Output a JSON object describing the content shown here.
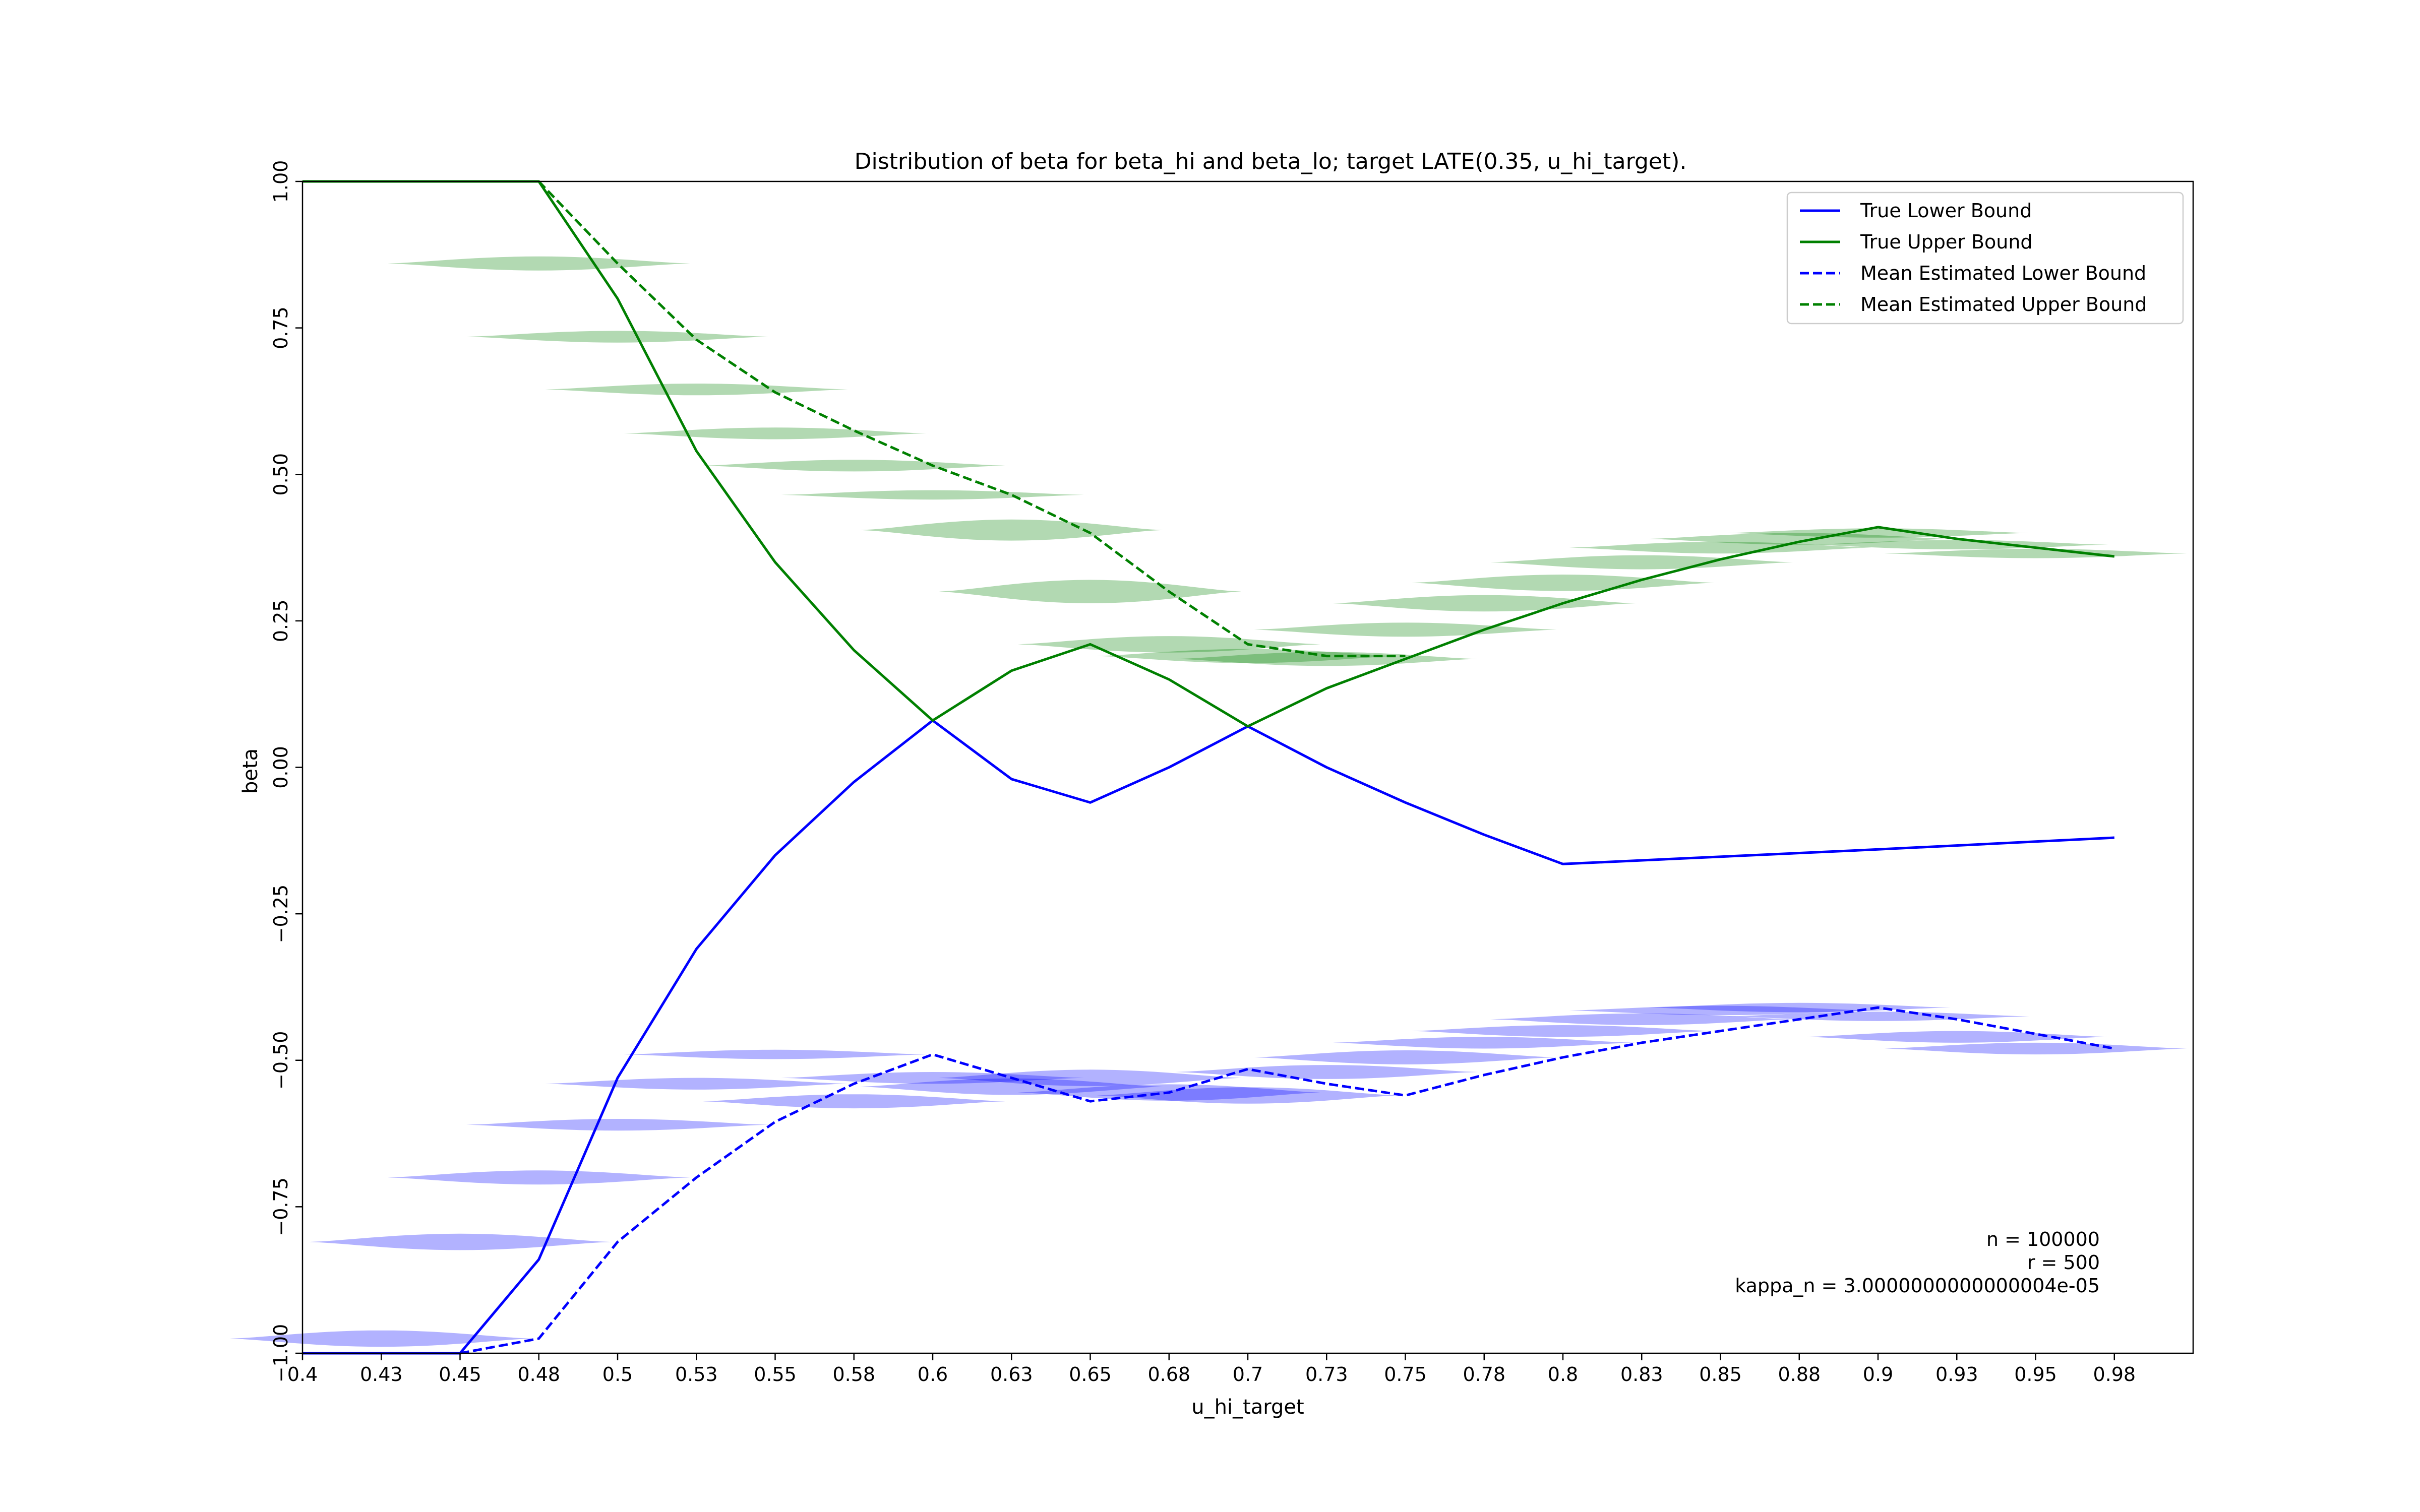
{
  "chart_data": {
    "type": "line",
    "title": "Distribution of beta for beta_hi and beta_lo; target LATE(0.35, u_hi_target).",
    "xlabel": "u_hi_target",
    "ylabel": "beta",
    "xlim": [
      0.4,
      1.0
    ],
    "ylim": [
      -1.0,
      1.0
    ],
    "x_tick_labels": [
      "0.4",
      "0.43",
      "0.45",
      "0.48",
      "0.5",
      "0.53",
      "0.55",
      "0.58",
      "0.6",
      "0.63",
      "0.65",
      "0.68",
      "0.7",
      "0.73",
      "0.75",
      "0.78",
      "0.8",
      "0.83",
      "0.85",
      "0.88",
      "0.9",
      "0.93",
      "0.95",
      "0.98"
    ],
    "y_ticks": [
      -1.0,
      -0.75,
      -0.5,
      -0.25,
      0.0,
      0.25,
      0.5,
      0.75,
      1.0
    ],
    "y_tick_labels": [
      "−1.00",
      "−0.75",
      "−0.50",
      "−0.25",
      "0.00",
      "0.25",
      "0.50",
      "0.75",
      "1.00"
    ],
    "legend_position": "top-right",
    "series": [
      {
        "name": "True Lower Bound",
        "color": "#0000ff",
        "style": "solid",
        "points": [
          [
            0.4,
            -1.0
          ],
          [
            0.425,
            -1.0
          ],
          [
            0.45,
            -1.0
          ],
          [
            0.475,
            -0.84
          ],
          [
            0.5,
            -0.53
          ],
          [
            0.525,
            -0.31
          ],
          [
            0.55,
            -0.15
          ],
          [
            0.575,
            -0.025
          ],
          [
            0.6,
            0.08
          ],
          [
            0.625,
            -0.02
          ],
          [
            0.65,
            -0.06
          ],
          [
            0.675,
            0.0
          ],
          [
            0.7,
            0.07
          ],
          [
            0.725,
            0.0
          ],
          [
            0.75,
            -0.06
          ],
          [
            0.775,
            -0.115
          ],
          [
            0.8,
            -0.165
          ],
          [
            0.9,
            -0.14
          ],
          [
            0.975,
            -0.12
          ]
        ]
      },
      {
        "name": "True Upper Bound",
        "color": "#008000",
        "style": "solid",
        "points": [
          [
            0.4,
            1.0
          ],
          [
            0.425,
            1.0
          ],
          [
            0.45,
            1.0
          ],
          [
            0.475,
            1.0
          ],
          [
            0.5,
            0.8
          ],
          [
            0.525,
            0.54
          ],
          [
            0.55,
            0.35
          ],
          [
            0.575,
            0.2
          ],
          [
            0.6,
            0.08
          ],
          [
            0.625,
            0.165
          ],
          [
            0.65,
            0.21
          ],
          [
            0.675,
            0.15
          ],
          [
            0.7,
            0.07
          ],
          [
            0.725,
            0.135
          ],
          [
            0.75,
            0.185
          ],
          [
            0.775,
            0.235
          ],
          [
            0.8,
            0.28
          ],
          [
            0.825,
            0.32
          ],
          [
            0.85,
            0.355
          ],
          [
            0.875,
            0.385
          ],
          [
            0.9,
            0.41
          ],
          [
            0.925,
            0.39
          ],
          [
            0.95,
            0.375
          ],
          [
            0.975,
            0.36
          ]
        ]
      },
      {
        "name": "Mean Estimated Lower Bound",
        "color": "#0000ff",
        "style": "dashed",
        "points": [
          [
            0.45,
            -1.0
          ],
          [
            0.475,
            -0.975
          ],
          [
            0.5,
            -0.81
          ],
          [
            0.525,
            -0.7
          ],
          [
            0.55,
            -0.605
          ],
          [
            0.575,
            -0.54
          ],
          [
            0.6,
            -0.49
          ],
          [
            0.625,
            -0.53
          ],
          [
            0.65,
            -0.57
          ],
          [
            0.675,
            -0.555
          ],
          [
            0.7,
            -0.515
          ],
          [
            0.725,
            -0.54
          ],
          [
            0.75,
            -0.56
          ],
          [
            0.775,
            -0.525
          ],
          [
            0.8,
            -0.495
          ],
          [
            0.825,
            -0.47
          ],
          [
            0.85,
            -0.45
          ],
          [
            0.875,
            -0.43
          ],
          [
            0.9,
            -0.41
          ],
          [
            0.925,
            -0.43
          ],
          [
            0.95,
            -0.455
          ],
          [
            0.975,
            -0.48
          ]
        ]
      },
      {
        "name": "Mean Estimated Upper Bound",
        "color": "#008000",
        "style": "dashed",
        "points": [
          [
            0.475,
            1.0
          ],
          [
            0.5,
            0.86
          ],
          [
            0.525,
            0.73
          ],
          [
            0.55,
            0.64
          ],
          [
            0.575,
            0.575
          ],
          [
            0.6,
            0.515
          ],
          [
            0.625,
            0.465
          ],
          [
            0.65,
            0.4
          ],
          [
            0.675,
            0.3
          ],
          [
            0.7,
            0.21
          ],
          [
            0.725,
            0.19
          ],
          [
            0.75,
            0.19
          ]
        ]
      }
    ],
    "violins_upper": {
      "color": "#008000",
      "opacity": 0.3,
      "items": [
        {
          "x": 0.475,
          "y": 0.86,
          "spread": 0.012
        },
        {
          "x": 0.5,
          "y": 0.735,
          "spread": 0.01
        },
        {
          "x": 0.525,
          "y": 0.645,
          "spread": 0.01
        },
        {
          "x": 0.55,
          "y": 0.57,
          "spread": 0.01
        },
        {
          "x": 0.575,
          "y": 0.515,
          "spread": 0.01
        },
        {
          "x": 0.6,
          "y": 0.465,
          "spread": 0.008
        },
        {
          "x": 0.625,
          "y": 0.405,
          "spread": 0.018
        },
        {
          "x": 0.65,
          "y": 0.3,
          "spread": 0.02
        },
        {
          "x": 0.675,
          "y": 0.21,
          "spread": 0.014
        },
        {
          "x": 0.7,
          "y": 0.19,
          "spread": 0.012
        },
        {
          "x": 0.725,
          "y": 0.185,
          "spread": 0.012
        },
        {
          "x": 0.75,
          "y": 0.235,
          "spread": 0.012
        },
        {
          "x": 0.775,
          "y": 0.28,
          "spread": 0.014
        },
        {
          "x": 0.8,
          "y": 0.315,
          "spread": 0.014
        },
        {
          "x": 0.825,
          "y": 0.35,
          "spread": 0.012
        },
        {
          "x": 0.85,
          "y": 0.375,
          "spread": 0.01
        },
        {
          "x": 0.875,
          "y": 0.39,
          "spread": 0.01
        },
        {
          "x": 0.9,
          "y": 0.4,
          "spread": 0.008
        },
        {
          "x": 0.925,
          "y": 0.38,
          "spread": 0.008
        },
        {
          "x": 0.95,
          "y": 0.365,
          "spread": 0.008
        }
      ]
    },
    "violins_lower": {
      "color": "#0000ff",
      "opacity": 0.3,
      "items": [
        {
          "x": 0.425,
          "y": -0.975,
          "spread": 0.014
        },
        {
          "x": 0.45,
          "y": -0.81,
          "spread": 0.014
        },
        {
          "x": 0.475,
          "y": -0.7,
          "spread": 0.012
        },
        {
          "x": 0.5,
          "y": -0.61,
          "spread": 0.01
        },
        {
          "x": 0.525,
          "y": -0.54,
          "spread": 0.01
        },
        {
          "x": 0.55,
          "y": -0.49,
          "spread": 0.008
        },
        {
          "x": 0.575,
          "y": -0.57,
          "spread": 0.012
        },
        {
          "x": 0.6,
          "y": -0.53,
          "spread": 0.01
        },
        {
          "x": 0.625,
          "y": -0.545,
          "spread": 0.014
        },
        {
          "x": 0.65,
          "y": -0.53,
          "spread": 0.014
        },
        {
          "x": 0.675,
          "y": -0.555,
          "spread": 0.014
        },
        {
          "x": 0.7,
          "y": -0.56,
          "spread": 0.014
        },
        {
          "x": 0.725,
          "y": -0.52,
          "spread": 0.012
        },
        {
          "x": 0.75,
          "y": -0.495,
          "spread": 0.012
        },
        {
          "x": 0.775,
          "y": -0.47,
          "spread": 0.01
        },
        {
          "x": 0.8,
          "y": -0.45,
          "spread": 0.01
        },
        {
          "x": 0.825,
          "y": -0.43,
          "spread": 0.01
        },
        {
          "x": 0.85,
          "y": -0.415,
          "spread": 0.008
        },
        {
          "x": 0.875,
          "y": -0.41,
          "spread": 0.008
        },
        {
          "x": 0.9,
          "y": -0.425,
          "spread": 0.008
        },
        {
          "x": 0.925,
          "y": -0.46,
          "spread": 0.01
        },
        {
          "x": 0.95,
          "y": -0.48,
          "spread": 0.01
        }
      ]
    },
    "annotation": [
      "n = 100000",
      "r = 500",
      "kappa_n = 3.0000000000000004e-05"
    ]
  }
}
